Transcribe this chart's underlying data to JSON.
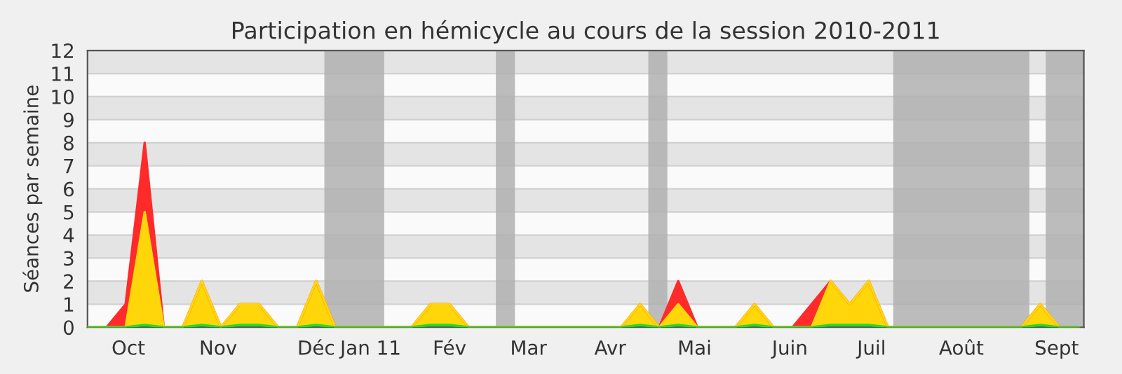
{
  "chart_data": {
    "type": "area",
    "title": "Participation en hémicycle au cours de la session 2010-2011",
    "ylabel": "Séances par semaine",
    "x": [
      "2010-09-27",
      "2010-10-04",
      "2010-10-11",
      "2010-10-18",
      "2010-10-25",
      "2010-11-01",
      "2010-11-08",
      "2010-11-15",
      "2010-11-22",
      "2010-11-29",
      "2010-12-06",
      "2010-12-13",
      "2010-12-20",
      "2010-12-27",
      "2011-01-03",
      "2011-01-10",
      "2011-01-17",
      "2011-01-24",
      "2011-01-31",
      "2011-02-07",
      "2011-02-14",
      "2011-02-21",
      "2011-02-28",
      "2011-03-07",
      "2011-03-14",
      "2011-03-21",
      "2011-03-28",
      "2011-04-04",
      "2011-04-11",
      "2011-04-18",
      "2011-04-25",
      "2011-05-02",
      "2011-05-09",
      "2011-05-16",
      "2011-05-23",
      "2011-05-30",
      "2011-06-06",
      "2011-06-13",
      "2011-06-20",
      "2011-06-27",
      "2011-07-04",
      "2011-07-11",
      "2011-07-18",
      "2011-07-25",
      "2011-08-01",
      "2011-08-08",
      "2011-08-15",
      "2011-08-22",
      "2011-08-29",
      "2011-09-05",
      "2011-09-12",
      "2011-09-19",
      "2011-09-26"
    ],
    "series": [
      {
        "color": "#ff2a2a",
        "values": [
          0,
          0,
          1,
          8,
          0,
          0,
          2,
          0,
          1,
          1,
          0,
          0,
          2,
          0,
          0,
          0,
          0,
          0,
          1,
          1,
          0,
          0,
          0,
          0,
          0,
          0,
          0,
          0,
          0,
          1,
          0,
          2,
          0,
          0,
          0,
          1,
          0,
          0,
          1,
          2,
          1,
          2,
          0,
          0,
          0,
          0,
          0,
          0,
          0,
          0,
          1,
          0,
          0
        ]
      },
      {
        "color": "#ffd60a",
        "values": [
          0,
          0,
          0,
          5,
          0,
          0,
          2,
          0,
          1,
          1,
          0,
          0,
          2,
          0,
          0,
          0,
          0,
          0,
          1,
          1,
          0,
          0,
          0,
          0,
          0,
          0,
          0,
          0,
          0,
          1,
          0,
          1,
          0,
          0,
          0,
          1,
          0,
          0,
          0,
          2,
          1,
          2,
          0,
          0,
          0,
          0,
          0,
          0,
          0,
          0,
          1,
          0,
          0
        ]
      },
      {
        "color": "#22dd22",
        "values": [
          0,
          0,
          0,
          0.1,
          0,
          0,
          0.1,
          0,
          0.1,
          0.1,
          0,
          0,
          0.1,
          0,
          0,
          0,
          0,
          0,
          0.1,
          0.1,
          0,
          0,
          0,
          0,
          0,
          0,
          0,
          0,
          0,
          0.1,
          0,
          0.1,
          0,
          0,
          0,
          0.1,
          0,
          0,
          0,
          0.1,
          0.1,
          0.1,
          0,
          0,
          0,
          0,
          0,
          0,
          0,
          0,
          0.1,
          0,
          0
        ]
      }
    ],
    "xlim": [
      "2010-09-27",
      "2011-09-28"
    ],
    "xticks": [
      {
        "value": "2010-10-12",
        "label": "Oct"
      },
      {
        "value": "2010-11-14",
        "label": "Nov"
      },
      {
        "value": "2010-12-20",
        "label": "Déc"
      },
      {
        "value": "2011-01-09",
        "label": "Jan 11"
      },
      {
        "value": "2011-02-07",
        "label": "Fév"
      },
      {
        "value": "2011-03-08",
        "label": "Mar"
      },
      {
        "value": "2011-04-07",
        "label": "Avr"
      },
      {
        "value": "2011-05-08",
        "label": "Mai"
      },
      {
        "value": "2011-06-12",
        "label": "Juin"
      },
      {
        "value": "2011-07-12",
        "label": "Juil"
      },
      {
        "value": "2011-08-14",
        "label": "Août"
      },
      {
        "value": "2011-09-18",
        "label": "Sept"
      }
    ],
    "ylim": [
      0,
      12
    ],
    "yticks": [
      0,
      1,
      2,
      3,
      4,
      5,
      6,
      7,
      8,
      9,
      10,
      11,
      12
    ],
    "grid": "y",
    "bands": [
      {
        "axis": "x",
        "from": "2010-12-23",
        "to": "2011-01-14",
        "color": "#b0b0b0"
      },
      {
        "axis": "x",
        "from": "2011-02-24",
        "to": "2011-03-03",
        "color": "#b0b0b0"
      },
      {
        "axis": "x",
        "from": "2011-04-21",
        "to": "2011-04-28",
        "color": "#b0b0b0"
      },
      {
        "axis": "x",
        "from": "2011-07-20",
        "to": "2011-09-08",
        "color": "#b0b0b0"
      },
      {
        "axis": "x",
        "from": "2011-09-14",
        "to": "2011-09-28",
        "color": "#b0b0b0"
      }
    ]
  }
}
